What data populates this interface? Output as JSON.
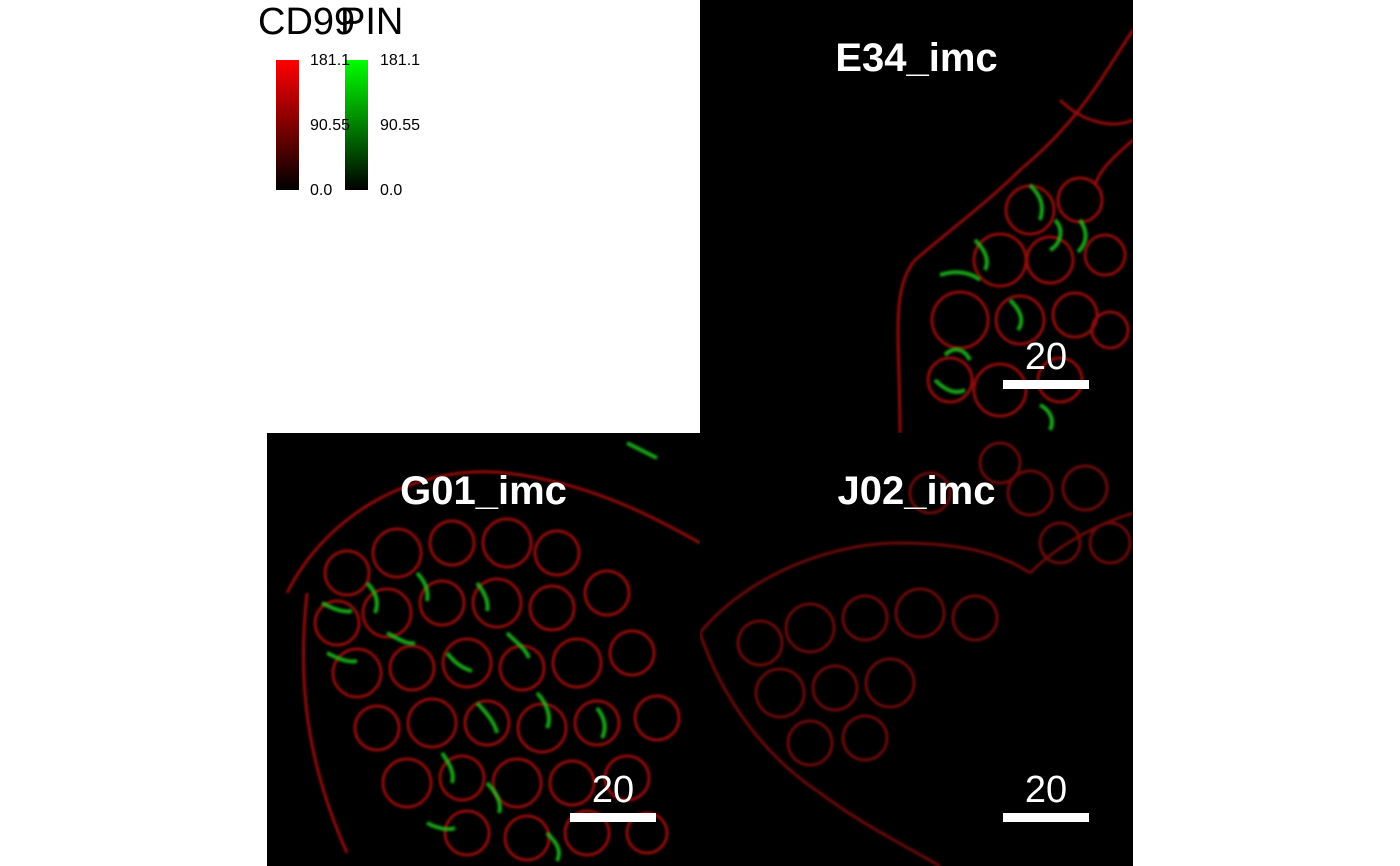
{
  "legend": {
    "channels": [
      {
        "name": "CD99",
        "color": "#ff0000",
        "max": "181.1",
        "mid": "90.55",
        "min": "0.0"
      },
      {
        "name": "PIN",
        "color": "#00ff00",
        "max": "181.1",
        "mid": "90.55",
        "min": "0.0"
      }
    ]
  },
  "panels": [
    {
      "title": "E34_imc",
      "scale_label": "20",
      "scale_units": 20
    },
    {
      "title": "G01_imc",
      "scale_label": "20",
      "scale_units": 20
    },
    {
      "title": "J02_imc",
      "scale_label": "20",
      "scale_units": 20
    }
  ],
  "colors": {
    "background": "#000000",
    "channel_1": "#ff0000",
    "channel_2": "#00ff00"
  }
}
